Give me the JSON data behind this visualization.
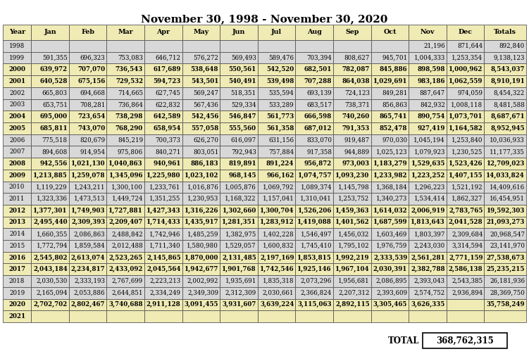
{
  "title": "November 30, 1998 - November 30, 2020",
  "headers": [
    "Year",
    "Jan",
    "Feb",
    "Mar",
    "Apr",
    "May",
    "Jun",
    "Jul",
    "Aug",
    "Sep",
    "Oct",
    "Nov",
    "Dec",
    "Totals"
  ],
  "rows": [
    [
      "1998",
      "",
      "",
      "",
      "",
      "",
      "",
      "",
      "",
      "",
      "",
      "21,196",
      "871,644",
      "892,840"
    ],
    [
      "1999",
      "591,355",
      "696,323",
      "753,083",
      "646,712",
      "576,272",
      "569,493",
      "589,476",
      "703,394",
      "808,627",
      "945,701",
      "1,004,333",
      "1,253,354",
      "9,138,123"
    ],
    [
      "2000",
      "639,972",
      "707,070",
      "736,543",
      "617,689",
      "538,648",
      "550,561",
      "542,520",
      "682,501",
      "782,087",
      "845,886",
      "898,598",
      "1,000,962",
      "8,543,037"
    ],
    [
      "2001",
      "640,528",
      "675,156",
      "729,532",
      "594,723",
      "543,501",
      "540,491",
      "539,498",
      "707,288",
      "864,038",
      "1,029,691",
      "983,186",
      "1,062,559",
      "8,910,191"
    ],
    [
      "2002",
      "665,803",
      "694,668",
      "714,665",
      "627,745",
      "569,247",
      "518,351",
      "535,594",
      "693,139",
      "724,123",
      "849,281",
      "887,647",
      "974,059",
      "8,454,322"
    ],
    [
      "2003",
      "653,751",
      "708,281",
      "736,864",
      "622,832",
      "567,436",
      "529,334",
      "533,289",
      "683,517",
      "738,371",
      "856,863",
      "842,932",
      "1,008,118",
      "8,481,588"
    ],
    [
      "2004",
      "695,000",
      "723,654",
      "738,298",
      "642,589",
      "542,456",
      "546,847",
      "561,773",
      "666,598",
      "740,260",
      "865,741",
      "890,754",
      "1,073,701",
      "8,687,671"
    ],
    [
      "2005",
      "685,811",
      "743,070",
      "768,290",
      "658,954",
      "557,058",
      "555,560",
      "561,358",
      "687,012",
      "791,353",
      "852,478",
      "927,419",
      "1,164,582",
      "8,952,945"
    ],
    [
      "2006",
      "775,518",
      "820,679",
      "845,219",
      "700,373",
      "626,270",
      "616,097",
      "631,156",
      "833,070",
      "919,487",
      "970,030",
      "1,045,194",
      "1,253,840",
      "10,036,933"
    ],
    [
      "2007",
      "894,608",
      "914,954",
      "975,806",
      "840,271",
      "803,051",
      "792,943",
      "757,884",
      "917,358",
      "944,889",
      "1,025,123",
      "1,079,923",
      "1,230,525",
      "11,177,335"
    ],
    [
      "2008",
      "942,556",
      "1,021,130",
      "1,040,863",
      "940,961",
      "886,183",
      "819,891",
      "891,224",
      "956,872",
      "973,003",
      "1,183,279",
      "1,529,635",
      "1,523,426",
      "12,709,023"
    ],
    [
      "2009",
      "1,213,885",
      "1,259,078",
      "1,345,096",
      "1,225,980",
      "1,023,102",
      "968,145",
      "966,162",
      "1,074,757",
      "1,093,230",
      "1,233,982",
      "1,223,252",
      "1,407,155",
      "14,033,824"
    ],
    [
      "2010",
      "1,119,229",
      "1,243,211",
      "1,300,100",
      "1,233,761",
      "1,016,876",
      "1,005,876",
      "1,069,792",
      "1,089,374",
      "1,145,798",
      "1,368,184",
      "1,296,223",
      "1,521,192",
      "14,409,616"
    ],
    [
      "2011",
      "1,323,336",
      "1,473,513",
      "1,449,724",
      "1,351,255",
      "1,230,953",
      "1,168,322",
      "1,157,041",
      "1,310,041",
      "1,253,752",
      "1,340,273",
      "1,534,414",
      "1,862,327",
      "16,454,951"
    ],
    [
      "2012",
      "1,377,301",
      "1,749,903",
      "1,727,881",
      "1,427,343",
      "1,316,226",
      "1,302,660",
      "1,300,704",
      "1,526,206",
      "1,459,363",
      "1,614,032",
      "2,006,919",
      "2,783,765",
      "19,592,303"
    ],
    [
      "2013",
      "2,495,440",
      "2,309,393",
      "2,209,407",
      "1,714,433",
      "1,435,917",
      "1,281,351",
      "1,283,912",
      "1,419,088",
      "1,401,562",
      "1,687,599",
      "1,813,643",
      "2,041,528",
      "21,093,273"
    ],
    [
      "2014",
      "1,660,355",
      "2,086,863",
      "2,488,842",
      "1,742,946",
      "1,485,259",
      "1,382,975",
      "1,402,228",
      "1,546,497",
      "1,456,032",
      "1,603,469",
      "1,803,397",
      "2,309,684",
      "20,968,547"
    ],
    [
      "2015",
      "1,772,794",
      "1,859,584",
      "2,012,488",
      "1,711,340",
      "1,580,980",
      "1,529,057",
      "1,600,832",
      "1,745,410",
      "1,795,102",
      "1,976,759",
      "2,243,030",
      "3,314,594",
      "23,141,970"
    ],
    [
      "2016",
      "2,545,802",
      "2,613,074",
      "2,523,265",
      "2,145,865",
      "1,870,000",
      "2,131,485",
      "2,197,169",
      "1,853,815",
      "1,992,219",
      "2,333,539",
      "2,561,281",
      "2,771,159",
      "27,538,673"
    ],
    [
      "2017",
      "2,043,184",
      "2,234,817",
      "2,433,092",
      "2,045,564",
      "1,942,677",
      "1,901,768",
      "1,742,546",
      "1,925,146",
      "1,967,104",
      "2,030,391",
      "2,382,788",
      "2,586,138",
      "25,235,215"
    ],
    [
      "2018",
      "2,030,530",
      "2,333,193",
      "2,767,699",
      "2,223,213",
      "2,002,992",
      "1,935,691",
      "1,835,318",
      "2,073,296",
      "1,956,681",
      "2,086,895",
      "2,393,043",
      "2,543,385",
      "26,181,936"
    ],
    [
      "2019",
      "2,165,094",
      "2,053,886",
      "2,644,851",
      "2,334,249",
      "2,349,309",
      "2,312,309",
      "2,030,661",
      "2,366,824",
      "2,207,312",
      "2,393,609",
      "2,574,752",
      "2,936,894",
      "28,369,750"
    ],
    [
      "2020",
      "2,702,702",
      "2,802,467",
      "3,740,688",
      "2,911,128",
      "3,091,455",
      "3,931,607",
      "3,639,224",
      "3,115,063",
      "2,892,115",
      "3,305,465",
      "3,626,335",
      "",
      "35,758,249"
    ],
    [
      "2021",
      "",
      "",
      "",
      "",
      "",
      "",
      "",
      "",
      "",
      "",
      "",
      "",
      ""
    ]
  ],
  "total_label": "TOTAL",
  "total_value": "368,762,315",
  "header_bg": "#f0ebb4",
  "yellow_bg": "#f0ebb4",
  "gray_bg": "#d8d8d8",
  "bold_years": [
    "2000",
    "2001",
    "2004",
    "2005",
    "2008",
    "2009",
    "2012",
    "2013",
    "2016",
    "2017",
    "2020",
    "2021"
  ],
  "title_fontsize": 11,
  "header_fontsize": 6.8,
  "cell_fontsize": 6.2
}
